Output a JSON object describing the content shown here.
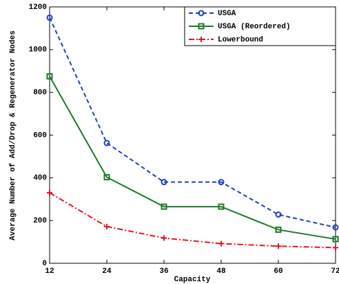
{
  "chart_data": {
    "type": "line",
    "x_label": "Capacity",
    "y_label": "Average Number of Add/Drop & Regenerator Nodes",
    "x": [
      12,
      24,
      36,
      48,
      60,
      72
    ],
    "series": [
      {
        "name": "USGA",
        "color": "#1f3fbf",
        "dash": "6,4",
        "marker": "circle",
        "values": [
          1150,
          563,
          380,
          380,
          228,
          168
        ]
      },
      {
        "name": "USGA (Reordered)",
        "color": "#1a7a2a",
        "dash": "none",
        "marker": "square",
        "values": [
          875,
          403,
          265,
          265,
          157,
          113
        ]
      },
      {
        "name": "Lowerbound",
        "color": "#e8141e",
        "dash": "8,3,2,3",
        "marker": "plus",
        "values": [
          330,
          172,
          118,
          92,
          80,
          73
        ]
      }
    ],
    "xlim": [
      12,
      72
    ],
    "xticks": [
      12,
      24,
      36,
      48,
      60,
      72
    ],
    "ylim": [
      0,
      1200
    ],
    "yticks": [
      0,
      200,
      400,
      600,
      800,
      1000,
      1200
    ],
    "legend": "upper right"
  }
}
